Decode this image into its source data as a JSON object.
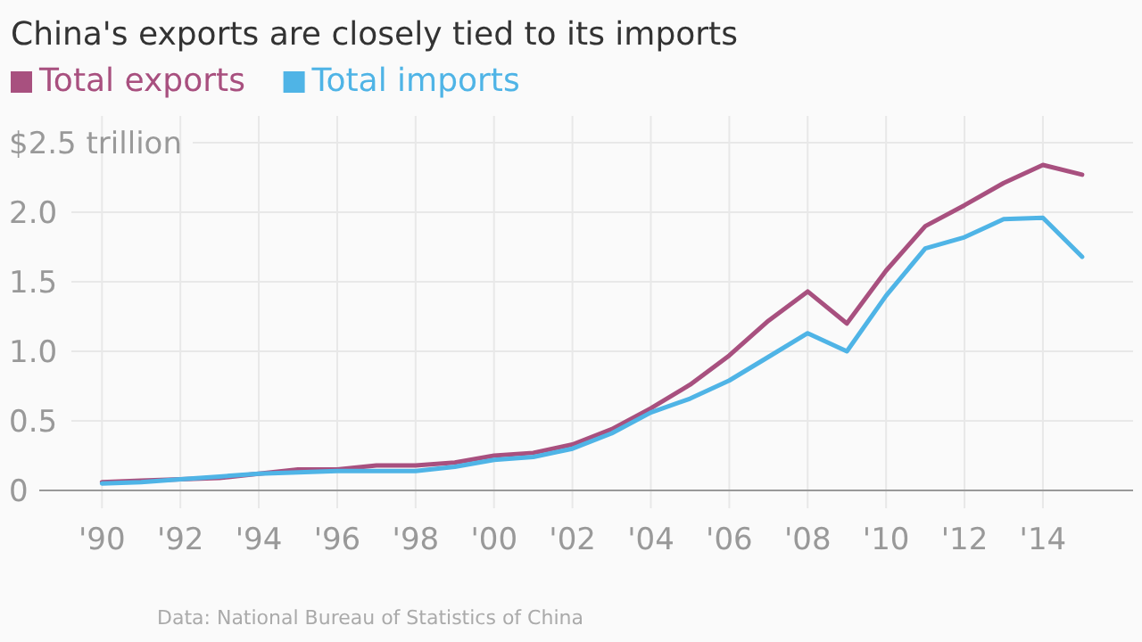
{
  "chart_data": {
    "type": "line",
    "title": "China's exports are closely tied to its imports",
    "annotations": [
      "Data: National Bureau of Statistics of China"
    ],
    "x": [
      1990,
      1991,
      1992,
      1993,
      1994,
      1995,
      1996,
      1997,
      1998,
      1999,
      2000,
      2001,
      2002,
      2003,
      2004,
      2005,
      2006,
      2007,
      2008,
      2009,
      2010,
      2011,
      2012,
      2013,
      2014,
      2015
    ],
    "series": [
      {
        "name": "Total exports",
        "color": "#a8507f",
        "values": [
          0.06,
          0.07,
          0.08,
          0.09,
          0.12,
          0.15,
          0.15,
          0.18,
          0.18,
          0.2,
          0.25,
          0.27,
          0.33,
          0.44,
          0.59,
          0.76,
          0.97,
          1.22,
          1.43,
          1.2,
          1.58,
          1.9,
          2.05,
          2.21,
          2.34,
          2.27
        ]
      },
      {
        "name": "Total imports",
        "color": "#4fb4e6",
        "values": [
          0.05,
          0.06,
          0.08,
          0.1,
          0.12,
          0.13,
          0.14,
          0.14,
          0.14,
          0.17,
          0.22,
          0.24,
          0.3,
          0.41,
          0.56,
          0.66,
          0.79,
          0.96,
          1.13,
          1.0,
          1.4,
          1.74,
          1.82,
          1.95,
          1.96,
          1.68
        ]
      }
    ],
    "xlim": [
      1988.4,
      2016.3
    ],
    "xticks": [
      {
        "value": 1990,
        "label": "'90"
      },
      {
        "value": 1992,
        "label": "'92"
      },
      {
        "value": 1994,
        "label": "'94"
      },
      {
        "value": 1996,
        "label": "'96"
      },
      {
        "value": 1998,
        "label": "'98"
      },
      {
        "value": 2000,
        "label": "'00"
      },
      {
        "value": 2002,
        "label": "'02"
      },
      {
        "value": 2004,
        "label": "'04"
      },
      {
        "value": 2006,
        "label": "'06"
      },
      {
        "value": 2008,
        "label": "'08"
      },
      {
        "value": 2010,
        "label": "'10"
      },
      {
        "value": 2012,
        "label": "'12"
      },
      {
        "value": 2014,
        "label": "'14"
      }
    ],
    "ylim": [
      0,
      2.5
    ],
    "yticks": [
      0,
      0.5,
      {
        "value": 1,
        "label": "1.0"
      },
      1.5,
      {
        "value": 2,
        "label": "2.0"
      },
      {
        "value": 2.5,
        "label": "$2.5 trillion"
      }
    ],
    "grid": true,
    "legend": "top left",
    "marker": "none",
    "line_style": "solid"
  }
}
